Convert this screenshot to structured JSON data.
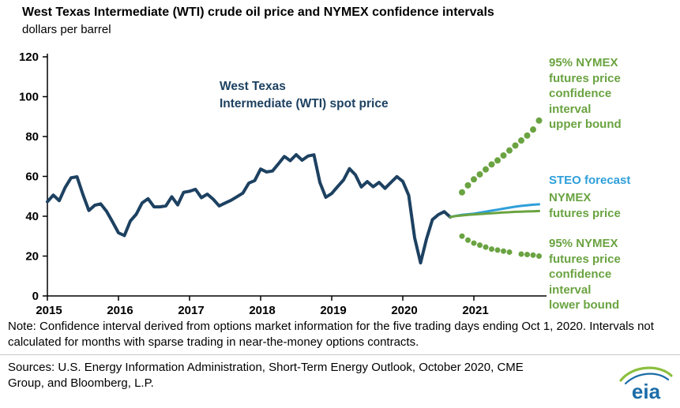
{
  "header": {
    "title": "West Texas Intermediate (WTI) crude oil price and NYMEX confidence intervals",
    "subtitle": "dollars per barrel"
  },
  "annotation": {
    "spot_label": "West Texas\nIntermediate (WTI) spot price"
  },
  "right_labels": {
    "upper_bound": "95% NYMEX\nfutures price\nconfidence\ninterval\nupper bound",
    "steo": "STEO forecast",
    "futures": "NYMEX\nfutures price",
    "lower_bound": "95% NYMEX\nfutures price\nconfidence\ninterval\nlower bound"
  },
  "footer": {
    "note": "Note: Confidence interval derived from options market information for the five trading days ending Oct 1, 2020. Intervals not calculated for months with sparse trading in near-the-money options contracts.",
    "sources": "Sources: U.S. Energy Information Administration, Short-Term Energy Outlook, October 2020, CME Group, and Bloomberg, L.P.",
    "logo_text": "eia"
  },
  "colors": {
    "navy": "#1d4161",
    "blue": "#2e9fd9",
    "green": "#6aa341",
    "logo_blue": "#1b6ca8",
    "logo_green": "#8cbf3f"
  },
  "chart_data": {
    "type": "line",
    "title": "West Texas Intermediate (WTI) crude oil price and NYMEX confidence intervals",
    "ylabel": "dollars per barrel",
    "ylim": [
      0,
      120
    ],
    "yticks": [
      0,
      20,
      40,
      60,
      80,
      100,
      120
    ],
    "x_years": [
      2015,
      2016,
      2017,
      2018,
      2019,
      2020,
      2021
    ],
    "x_unit": "months since 2015-01",
    "grid": false,
    "legend_position": "right-margin-labels",
    "series": [
      {
        "id": "wti-spot",
        "name": "West Texas Intermediate (WTI) spot price",
        "style": "line",
        "color": "#1d4161",
        "width": 4,
        "x0": 0,
        "values": [
          47.3,
          50.6,
          47.8,
          54.4,
          59.3,
          59.8,
          50.9,
          42.9,
          45.5,
          46.2,
          42.4,
          37.2,
          31.7,
          30.3,
          37.6,
          41.0,
          46.7,
          48.8,
          44.7,
          44.7,
          45.2,
          49.8,
          45.7,
          52.0,
          52.5,
          53.5,
          49.3,
          51.1,
          48.5,
          45.2,
          46.6,
          48.0,
          49.8,
          51.6,
          56.6,
          57.9,
          63.7,
          62.2,
          62.7,
          66.3,
          70.0,
          67.9,
          70.9,
          68.1,
          70.2,
          70.8,
          57.0,
          49.5,
          51.4,
          54.9,
          58.2,
          63.9,
          60.8,
          54.7,
          57.4,
          54.8,
          57.0,
          54.0,
          57.0,
          59.9,
          57.5,
          50.5,
          29.2,
          16.6,
          28.6,
          38.3,
          40.8,
          42.3,
          39.6
        ]
      },
      {
        "id": "steo-forecast",
        "name": "STEO forecast",
        "style": "line",
        "color": "#2e9fd9",
        "width": 3,
        "x0": 68,
        "values": [
          39.6,
          40.2,
          40.7,
          41.0,
          41.3,
          41.8,
          42.3,
          42.8,
          43.3,
          43.8,
          44.3,
          44.8,
          45.2,
          45.5,
          45.8,
          46.0
        ]
      },
      {
        "id": "nymex-futures",
        "name": "NYMEX futures price",
        "style": "line",
        "color": "#6aa341",
        "width": 3,
        "x0": 68,
        "values": [
          39.6,
          40.1,
          40.4,
          40.7,
          40.9,
          41.1,
          41.3,
          41.5,
          41.7,
          41.9,
          42.0,
          42.2,
          42.3,
          42.4,
          42.5,
          42.6
        ]
      },
      {
        "id": "ci-upper-bound",
        "name": "95% NYMEX futures price confidence interval upper bound",
        "style": "dots",
        "color": "#6aa341",
        "dot_r": 4,
        "x0": 70,
        "values": [
          52,
          55.5,
          58.5,
          61,
          63.5,
          66,
          68,
          70.5,
          73,
          75.5,
          78,
          80.5,
          83.5,
          88
        ]
      },
      {
        "id": "ci-lower-bound",
        "name": "95% NYMEX futures price confidence interval lower bound",
        "style": "dots",
        "color": "#6aa341",
        "dot_r": 3.5,
        "x0": 70,
        "values": [
          30,
          28,
          26.5,
          25.5,
          24.5,
          23.5,
          23,
          22.5,
          22,
          null,
          21,
          20.8,
          20.5,
          20
        ]
      }
    ]
  }
}
